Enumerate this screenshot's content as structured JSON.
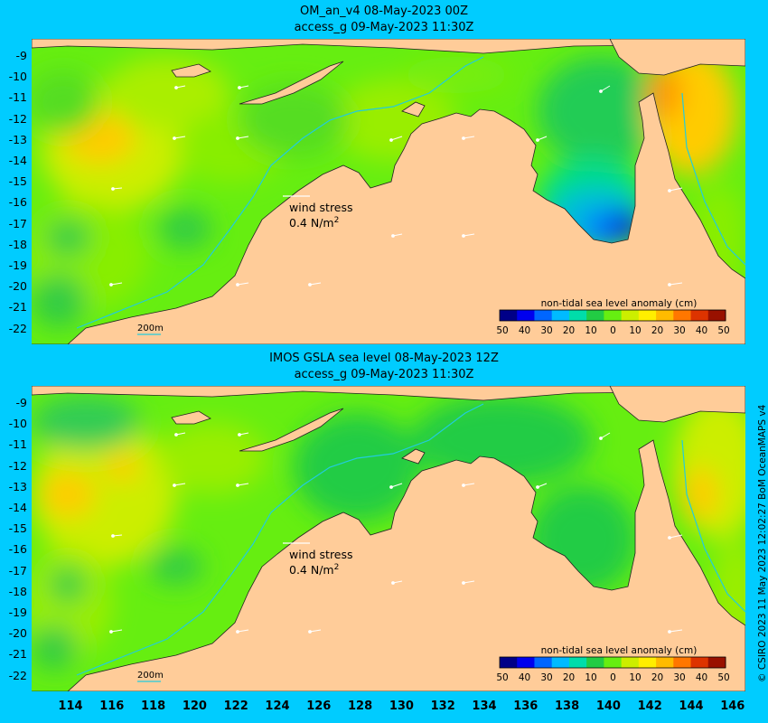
{
  "panels": [
    {
      "title_line1": "OM_an_v4  08-May-2023 00Z",
      "title_line2": "access_g 09-May-2023 11:30Z",
      "wind_stress_label": "wind stress",
      "wind_stress_value": "0.4 N/m",
      "wind_stress_exp": "2",
      "contour_label": "200m",
      "colorbar_title": "non-tidal sea level anomaly (cm)",
      "colorbar_ticks": [
        "50",
        "40",
        "30",
        "20",
        "10",
        "0",
        "10",
        "20",
        "30",
        "40",
        "50"
      ]
    },
    {
      "title_line1": "IMOS GSLA sea level  08-May-2023 12Z",
      "title_line2": "access_g 09-May-2023 11:30Z",
      "wind_stress_label": "wind stress",
      "wind_stress_value": "0.4 N/m",
      "wind_stress_exp": "2",
      "contour_label": "200m",
      "colorbar_title": "non-tidal sea level anomaly (cm)",
      "colorbar_ticks": [
        "50",
        "40",
        "30",
        "20",
        "10",
        "0",
        "10",
        "20",
        "30",
        "40",
        "50"
      ]
    }
  ],
  "y_axis_labels": [
    "-9",
    "-10",
    "-11",
    "-12",
    "-13",
    "-14",
    "-15",
    "-16",
    "-17",
    "-18",
    "-19",
    "-20",
    "-21",
    "-22"
  ],
  "x_axis_labels": [
    "114",
    "116",
    "118",
    "120",
    "122",
    "124",
    "126",
    "128",
    "130",
    "132",
    "134",
    "136",
    "138",
    "140",
    "142",
    "144",
    "146"
  ],
  "credit": "© CSIRO 2023   11 May 2023 12:02:27 BoM OceanMAPS v4",
  "colors": {
    "background": "#00ccff",
    "land": "#ffcc99",
    "ocean_base": "#66ee11",
    "colorbar": [
      "#000088",
      "#0000ee",
      "#0066ff",
      "#00bbff",
      "#00ddaa",
      "#22cc44",
      "#66ee11",
      "#ccee00",
      "#ffee00",
      "#ffbb00",
      "#ff7700",
      "#dd3300",
      "#991100"
    ]
  }
}
